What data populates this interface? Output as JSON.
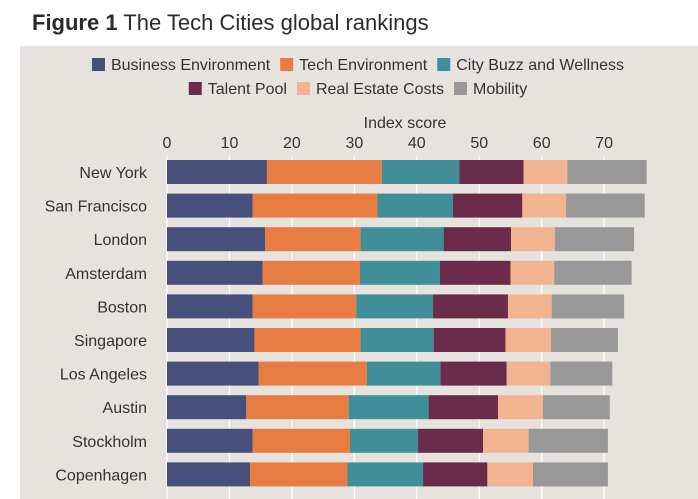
{
  "figure": {
    "label": "Figure 1",
    "title": "The Tech Cities global rankings"
  },
  "chart_data": {
    "type": "bar",
    "orientation": "horizontal",
    "stacked": true,
    "xlabel": "Index score",
    "xlim": [
      0,
      77
    ],
    "xticks": [
      0,
      10,
      20,
      30,
      40,
      50,
      60,
      70
    ],
    "legend_position": "top",
    "grid": true,
    "categories": [
      "New York",
      "San Francisco",
      "London",
      "Amsterdam",
      "Boston",
      "Singapore",
      "Los Angeles",
      "Austin",
      "Stockholm",
      "Copenhagen"
    ],
    "series": [
      {
        "name": "Business Environment",
        "color": "#46507a",
        "values": [
          16.0,
          13.7,
          15.7,
          15.3,
          13.7,
          14.0,
          14.7,
          12.7,
          13.7,
          13.3
        ]
      },
      {
        "name": "Tech Environment",
        "color": "#e87c43",
        "values": [
          18.4,
          20.0,
          15.3,
          15.6,
          16.6,
          17.0,
          17.3,
          16.4,
          15.6,
          15.6
        ]
      },
      {
        "name": "City Buzz and Wellness",
        "color": "#3f8e98",
        "values": [
          12.4,
          12.1,
          13.3,
          12.8,
          12.3,
          11.7,
          11.8,
          12.8,
          10.9,
          12.1
        ]
      },
      {
        "name": "Talent Pool",
        "color": "#6b2c4c",
        "values": [
          10.3,
          11.1,
          10.8,
          11.3,
          12.0,
          11.5,
          10.6,
          11.1,
          10.4,
          10.3
        ]
      },
      {
        "name": "Real Estate Costs",
        "color": "#f2b391",
        "values": [
          7.0,
          7.0,
          7.0,
          7.0,
          7.0,
          7.3,
          7.0,
          7.2,
          7.3,
          7.3
        ]
      },
      {
        "name": "Mobility",
        "color": "#989898",
        "values": [
          12.7,
          12.6,
          12.7,
          12.4,
          11.6,
          10.7,
          9.9,
          10.7,
          12.7,
          12.0
        ]
      }
    ]
  }
}
